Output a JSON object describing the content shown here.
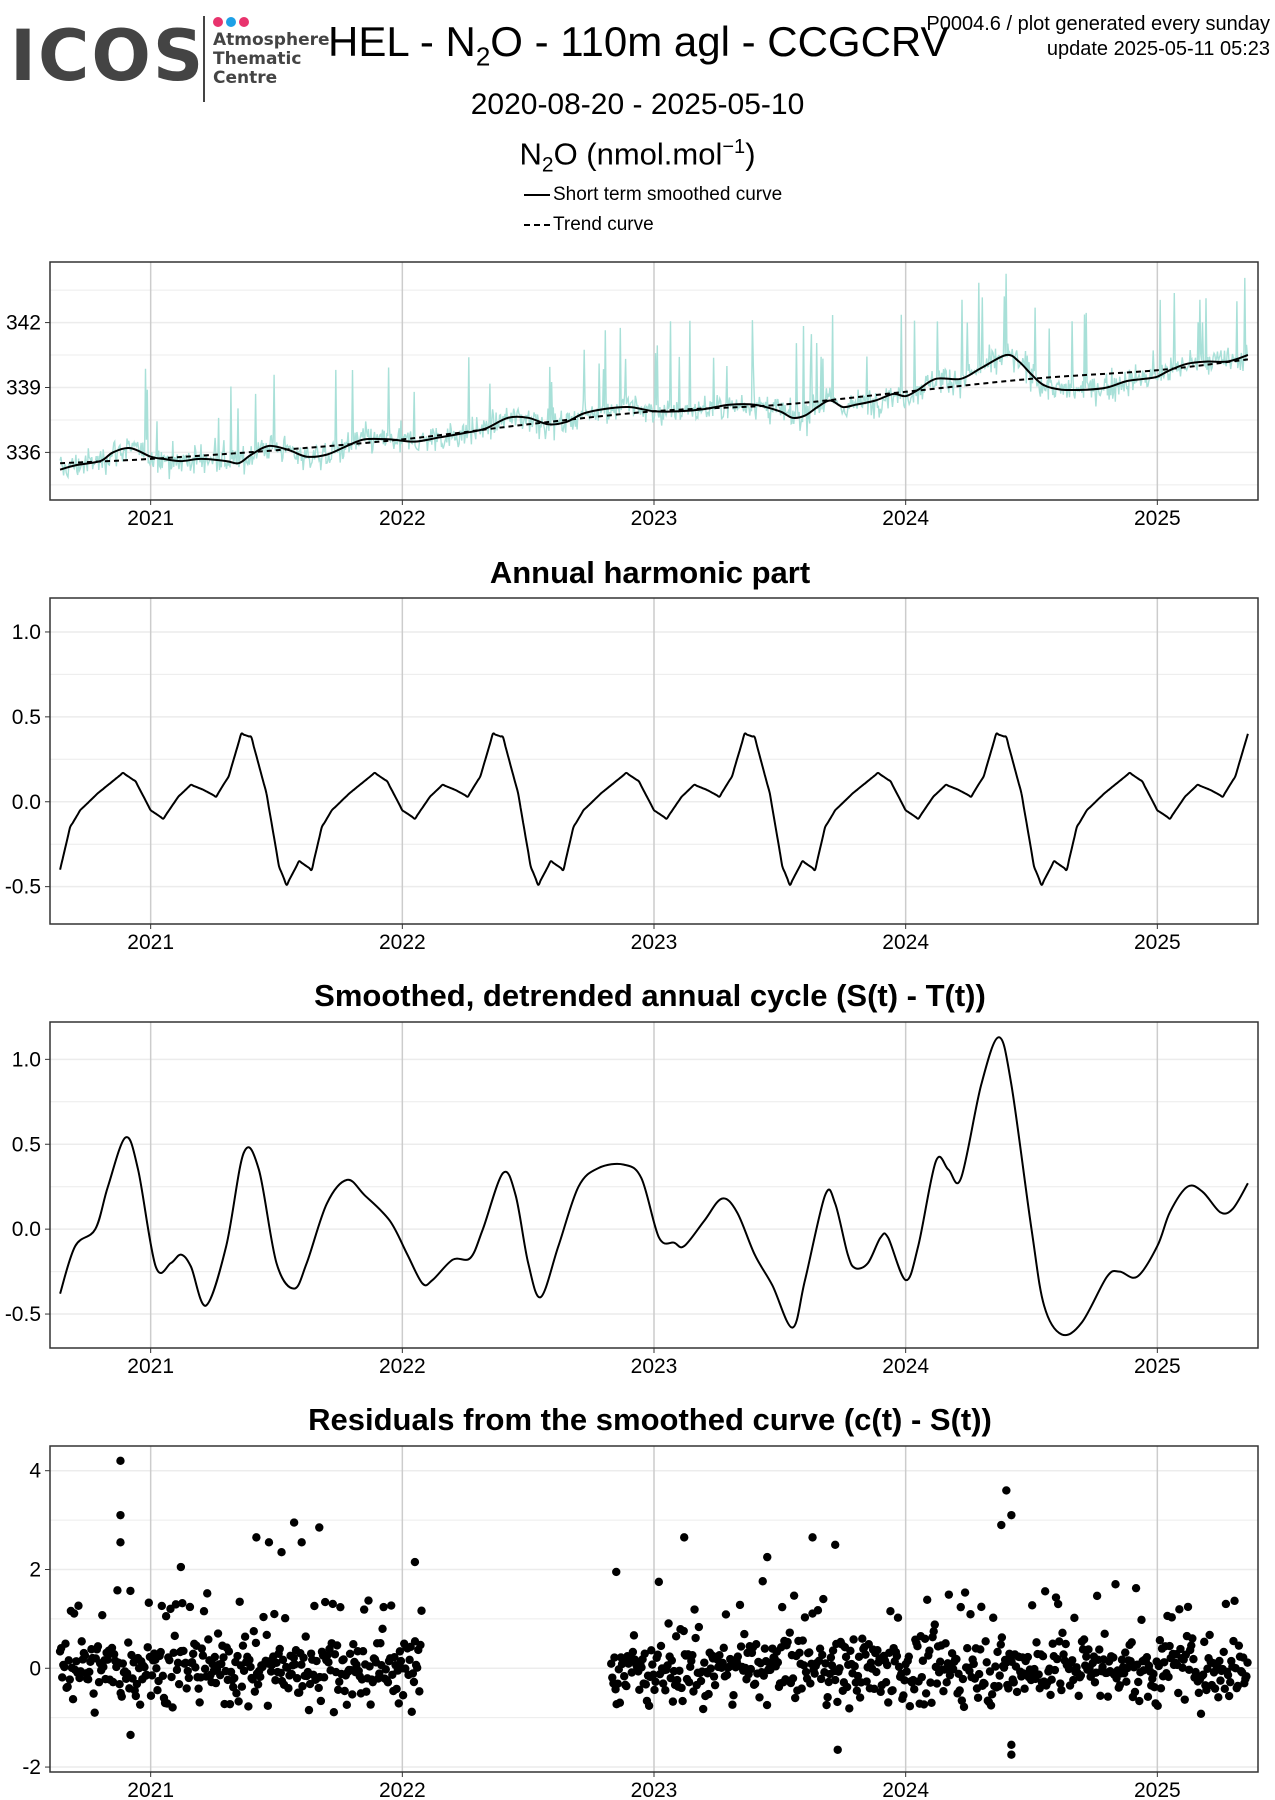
{
  "logo": {
    "word": "ICOS",
    "line1": "Atmosphere",
    "line2": "Thematic",
    "line3": "Centre",
    "dot_colors": [
      "#e8336d",
      "#1ea0e6",
      "#e8336d"
    ]
  },
  "header": {
    "title_prefix": "HEL - N",
    "title_sub": "2",
    "title_suffix": "O - 110m agl - CCGCRV",
    "meta_line1": "P0004.6 / plot generated every sunday",
    "meta_line2": "update  2025-05-11 05:23",
    "date_range": "2020-08-20 - 2025-05-10",
    "unit_prefix": "N",
    "unit_sub": "2",
    "unit_mid": "O (nmol.mol",
    "unit_sup": "−1",
    "unit_suffix": ")"
  },
  "legend": [
    {
      "label": "Short term smoothed curve",
      "style": "solid"
    },
    {
      "label": "Trend curve",
      "style": "dashed"
    }
  ],
  "colors": {
    "raw": "#a8e0d8",
    "line": "#000000",
    "grid": "#cccccc",
    "grid_minor": "#ececec"
  },
  "chart_data": [
    {
      "type": "line",
      "title": "",
      "x_ticks": [
        "2021",
        "2022",
        "2023",
        "2024",
        "2025"
      ],
      "xlim": [
        2020.6,
        2025.4
      ],
      "ylim": [
        333.8,
        344.8
      ],
      "y_ticks": [
        "336",
        "339",
        "342"
      ],
      "y_tick_values": [
        336,
        339,
        342
      ],
      "grid": true,
      "series": [
        {
          "name": "Short term smoothed curve",
          "style": "solid",
          "points": [
            [
              2020.64,
              335.2
            ],
            [
              2020.7,
              335.4
            ],
            [
              2020.8,
              335.6
            ],
            [
              2020.85,
              336.0
            ],
            [
              2020.92,
              336.2
            ],
            [
              2021.0,
              335.8
            ],
            [
              2021.05,
              335.7
            ],
            [
              2021.12,
              335.6
            ],
            [
              2021.2,
              335.7
            ],
            [
              2021.3,
              335.6
            ],
            [
              2021.35,
              335.5
            ],
            [
              2021.4,
              335.9
            ],
            [
              2021.47,
              336.3
            ],
            [
              2021.55,
              336.1
            ],
            [
              2021.62,
              335.8
            ],
            [
              2021.7,
              335.9
            ],
            [
              2021.78,
              336.3
            ],
            [
              2021.85,
              336.6
            ],
            [
              2021.95,
              336.6
            ],
            [
              2022.05,
              336.5
            ],
            [
              2022.15,
              336.7
            ],
            [
              2022.25,
              336.9
            ],
            [
              2022.33,
              337.1
            ],
            [
              2022.42,
              337.6
            ],
            [
              2022.5,
              337.6
            ],
            [
              2022.58,
              337.3
            ],
            [
              2022.65,
              337.4
            ],
            [
              2022.72,
              337.8
            ],
            [
              2022.8,
              338.0
            ],
            [
              2022.9,
              338.1
            ],
            [
              2023.0,
              337.9
            ],
            [
              2023.1,
              337.9
            ],
            [
              2023.2,
              338.0
            ],
            [
              2023.3,
              338.2
            ],
            [
              2023.4,
              338.2
            ],
            [
              2023.5,
              337.9
            ],
            [
              2023.55,
              337.6
            ],
            [
              2023.6,
              337.7
            ],
            [
              2023.65,
              338.1
            ],
            [
              2023.7,
              338.4
            ],
            [
              2023.75,
              338.1
            ],
            [
              2023.8,
              338.2
            ],
            [
              2023.88,
              338.4
            ],
            [
              2023.95,
              338.7
            ],
            [
              2024.0,
              338.6
            ],
            [
              2024.05,
              338.9
            ],
            [
              2024.12,
              339.4
            ],
            [
              2024.22,
              339.4
            ],
            [
              2024.3,
              339.9
            ],
            [
              2024.4,
              340.5
            ],
            [
              2024.45,
              340.2
            ],
            [
              2024.5,
              339.6
            ],
            [
              2024.55,
              339.1
            ],
            [
              2024.62,
              338.9
            ],
            [
              2024.72,
              338.9
            ],
            [
              2024.8,
              339.0
            ],
            [
              2024.88,
              339.3
            ],
            [
              2024.95,
              339.4
            ],
            [
              2025.0,
              339.5
            ],
            [
              2025.05,
              339.8
            ],
            [
              2025.12,
              340.1
            ],
            [
              2025.2,
              340.2
            ],
            [
              2025.28,
              340.2
            ],
            [
              2025.36,
              340.5
            ]
          ]
        },
        {
          "name": "Trend curve",
          "style": "dashed",
          "points": [
            [
              2020.64,
              335.5
            ],
            [
              2021.0,
              335.7
            ],
            [
              2021.5,
              336.1
            ],
            [
              2022.0,
              336.6
            ],
            [
              2022.5,
              337.3
            ],
            [
              2023.0,
              337.9
            ],
            [
              2023.5,
              338.2
            ],
            [
              2024.0,
              338.8
            ],
            [
              2024.5,
              339.4
            ],
            [
              2025.0,
              339.8
            ],
            [
              2025.36,
              340.3
            ]
          ]
        }
      ]
    },
    {
      "type": "line",
      "title": "Annual harmonic part",
      "x_ticks": [
        "2021",
        "2022",
        "2023",
        "2024",
        "2025"
      ],
      "xlim": [
        2020.6,
        2025.4
      ],
      "ylim": [
        -0.72,
        1.2
      ],
      "y_ticks": [
        "-0.5",
        "0.0",
        "0.5",
        "1.0"
      ],
      "y_tick_values": [
        -0.5,
        0.0,
        0.5,
        1.0
      ],
      "grid": true,
      "series": [
        {
          "name": "",
          "style": "solid",
          "annual_cycle": true,
          "start": 2020.64,
          "end": 2025.36,
          "cycle": [
            [
              0.0,
              -0.4
            ],
            [
              0.04,
              -0.15
            ],
            [
              0.08,
              -0.05
            ],
            [
              0.15,
              0.05
            ],
            [
              0.25,
              0.17
            ],
            [
              0.3,
              0.12
            ],
            [
              0.36,
              -0.05
            ],
            [
              0.41,
              -0.1
            ],
            [
              0.47,
              0.03
            ],
            [
              0.52,
              0.1
            ],
            [
              0.57,
              0.07
            ],
            [
              0.62,
              0.03
            ],
            [
              0.67,
              0.15
            ],
            [
              0.72,
              0.4
            ],
            [
              0.76,
              0.38
            ],
            [
              0.82,
              0.05
            ],
            [
              0.87,
              -0.38
            ],
            [
              0.9,
              -0.49
            ],
            [
              0.95,
              -0.35
            ],
            [
              1.0,
              -0.4
            ]
          ]
        }
      ]
    },
    {
      "type": "line",
      "title": "Smoothed, detrended annual cycle (S(t) - T(t))",
      "x_ticks": [
        "2021",
        "2022",
        "2023",
        "2024",
        "2025"
      ],
      "xlim": [
        2020.6,
        2025.4
      ],
      "ylim": [
        -0.7,
        1.22
      ],
      "y_ticks": [
        "-0.5",
        "0.0",
        "0.5",
        "1.0"
      ],
      "y_tick_values": [
        -0.5,
        0.0,
        0.5,
        1.0
      ],
      "grid": true,
      "series": [
        {
          "name": "",
          "style": "solid",
          "points": [
            [
              2020.64,
              -0.38
            ],
            [
              2020.7,
              -0.1
            ],
            [
              2020.78,
              0.0
            ],
            [
              2020.83,
              0.25
            ],
            [
              2020.9,
              0.54
            ],
            [
              2020.95,
              0.35
            ],
            [
              2021.02,
              -0.22
            ],
            [
              2021.08,
              -0.2
            ],
            [
              2021.12,
              -0.15
            ],
            [
              2021.16,
              -0.22
            ],
            [
              2021.22,
              -0.45
            ],
            [
              2021.3,
              -0.1
            ],
            [
              2021.37,
              0.45
            ],
            [
              2021.43,
              0.35
            ],
            [
              2021.5,
              -0.2
            ],
            [
              2021.57,
              -0.35
            ],
            [
              2021.62,
              -0.2
            ],
            [
              2021.7,
              0.15
            ],
            [
              2021.78,
              0.29
            ],
            [
              2021.85,
              0.2
            ],
            [
              2021.95,
              0.05
            ],
            [
              2022.02,
              -0.15
            ],
            [
              2022.08,
              -0.32
            ],
            [
              2022.12,
              -0.3
            ],
            [
              2022.2,
              -0.18
            ],
            [
              2022.27,
              -0.17
            ],
            [
              2022.32,
              0.0
            ],
            [
              2022.4,
              0.33
            ],
            [
              2022.45,
              0.2
            ],
            [
              2022.5,
              -0.2
            ],
            [
              2022.55,
              -0.4
            ],
            [
              2022.62,
              -0.1
            ],
            [
              2022.7,
              0.25
            ],
            [
              2022.78,
              0.36
            ],
            [
              2022.88,
              0.38
            ],
            [
              2022.95,
              0.3
            ],
            [
              2023.02,
              -0.05
            ],
            [
              2023.08,
              -0.08
            ],
            [
              2023.12,
              -0.1
            ],
            [
              2023.2,
              0.05
            ],
            [
              2023.27,
              0.18
            ],
            [
              2023.33,
              0.1
            ],
            [
              2023.4,
              -0.15
            ],
            [
              2023.47,
              -0.33
            ],
            [
              2023.55,
              -0.58
            ],
            [
              2023.6,
              -0.3
            ],
            [
              2023.68,
              0.2
            ],
            [
              2023.72,
              0.15
            ],
            [
              2023.77,
              -0.15
            ],
            [
              2023.8,
              -0.23
            ],
            [
              2023.85,
              -0.2
            ],
            [
              2023.9,
              -0.05
            ],
            [
              2023.93,
              -0.05
            ],
            [
              2024.0,
              -0.3
            ],
            [
              2024.05,
              -0.1
            ],
            [
              2024.12,
              0.4
            ],
            [
              2024.17,
              0.35
            ],
            [
              2024.22,
              0.3
            ],
            [
              2024.3,
              0.85
            ],
            [
              2024.37,
              1.13
            ],
            [
              2024.42,
              0.85
            ],
            [
              2024.5,
              0.0
            ],
            [
              2024.55,
              -0.45
            ],
            [
              2024.62,
              -0.62
            ],
            [
              2024.7,
              -0.55
            ],
            [
              2024.8,
              -0.28
            ],
            [
              2024.85,
              -0.25
            ],
            [
              2024.92,
              -0.28
            ],
            [
              2025.0,
              -0.1
            ],
            [
              2025.05,
              0.1
            ],
            [
              2025.12,
              0.25
            ],
            [
              2025.18,
              0.22
            ],
            [
              2025.25,
              0.1
            ],
            [
              2025.3,
              0.12
            ],
            [
              2025.36,
              0.27
            ]
          ]
        }
      ]
    },
    {
      "type": "scatter",
      "title": "Residuals from the smoothed curve (c(t) - S(t))",
      "x_ticks": [
        "2021",
        "2022",
        "2023",
        "2024",
        "2025"
      ],
      "xlim": [
        2020.6,
        2025.4
      ],
      "ylim": [
        -2.1,
        4.5
      ],
      "y_ticks": [
        "-2",
        "0",
        "2",
        "4"
      ],
      "y_tick_values": [
        -2,
        0,
        2,
        4
      ],
      "grid": true,
      "series": [
        {
          "name": "",
          "style": "points",
          "segments": [
            [
              2020.64,
              2022.08
            ],
            [
              2022.83,
              2025.36
            ]
          ],
          "approx_spread": 0.7,
          "outliers": [
            [
              2020.88,
              4.2
            ],
            [
              2020.88,
              3.1
            ],
            [
              2020.88,
              2.55
            ],
            [
              2021.12,
              2.05
            ],
            [
              2021.42,
              2.65
            ],
            [
              2021.47,
              2.55
            ],
            [
              2021.52,
              2.35
            ],
            [
              2021.57,
              2.95
            ],
            [
              2021.6,
              2.55
            ],
            [
              2021.67,
              2.85
            ],
            [
              2022.05,
              2.15
            ],
            [
              2022.85,
              1.95
            ],
            [
              2023.12,
              2.65
            ],
            [
              2023.45,
              2.25
            ],
            [
              2023.63,
              2.65
            ],
            [
              2023.72,
              2.5
            ],
            [
              2024.4,
              3.6
            ],
            [
              2024.42,
              3.1
            ],
            [
              2024.38,
              2.9
            ],
            [
              2024.42,
              -1.75
            ],
            [
              2024.42,
              -1.55
            ],
            [
              2023.73,
              -1.65
            ],
            [
              2020.92,
              -1.35
            ]
          ]
        }
      ]
    }
  ]
}
